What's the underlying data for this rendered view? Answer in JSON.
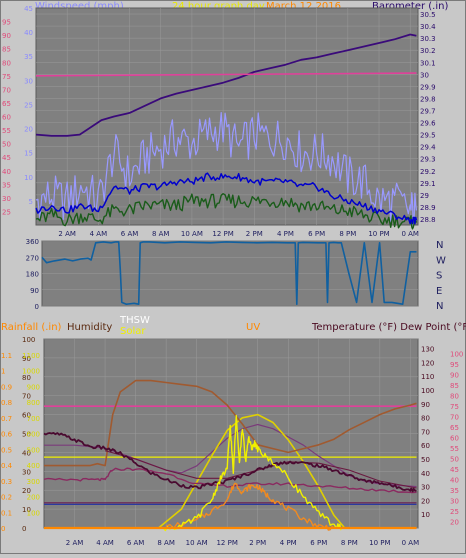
{
  "header": {
    "windspeed_label": "Windspeed (mph)",
    "graph_title": "24 hour graph day",
    "date_text": "March 12 2016",
    "barometer_label": "Barometer (.in)"
  },
  "bottom_labels": {
    "rainfall": "Rainfall (.in)",
    "humidity": "Humidity",
    "thsw": "THSW",
    "solar": "Solar",
    "uv": "UV",
    "temperature": "Temperature (°F) Dew Point (°F)"
  },
  "colors": {
    "plot_bg": "#808080",
    "wind_avg": "#0000cc",
    "wind_gust": "#9999ff",
    "wind_low": "#1a5c1a",
    "barometer": "#3a0a7a",
    "pink_line": "#e0409a",
    "wind_dir": "#1060a0",
    "temperature": "#4a0a30",
    "dew_point": "#8a2a60",
    "humidity": "#a05a30",
    "solar": "#f0f000",
    "uv": "#f08a20",
    "rain": "#ff8800"
  },
  "chart_data": [
    {
      "type": "line",
      "xlabel": "",
      "x_ticks": [
        "2 AM",
        "4 AM",
        "6 AM",
        "8 AM",
        "10 AM",
        "12 PM",
        "2 PM",
        "4 PM",
        "6 PM",
        "8 PM",
        "10 PM",
        "0 AM"
      ],
      "x_range_hours": [
        0,
        24.5
      ],
      "y_left": {
        "label": "Windspeed (mph)",
        "range": [
          0,
          45
        ],
        "ticks": [
          5,
          10,
          15,
          20,
          25,
          30,
          35,
          40,
          45
        ]
      },
      "y_left_outer": {
        "range": [
          20,
          100
        ],
        "ticks": [
          25,
          30,
          35,
          40,
          45,
          50,
          55,
          60,
          65,
          70,
          75,
          80,
          85,
          90,
          95
        ]
      },
      "y_right": {
        "label": "Barometer (.in)",
        "range": [
          28.75,
          30.55
        ],
        "ticks": [
          "28.8",
          "28.9",
          "29",
          "29.1",
          "29.2",
          "29.3",
          "29.4",
          "29.5",
          "29.6",
          "29.7",
          "29.8",
          "29.9",
          "30",
          "30.1",
          "30.2",
          "30.3",
          "30.4",
          "30.5"
        ]
      },
      "series": [
        {
          "name": "Barometer",
          "axis": "right",
          "x": [
            0,
            1,
            2,
            2.8,
            3.5,
            4.2,
            5,
            6,
            7,
            8,
            9,
            10,
            11,
            12,
            13,
            14,
            15,
            16,
            17,
            18,
            19,
            20,
            21,
            22,
            23,
            24,
            24.4
          ],
          "y": [
            29.5,
            29.49,
            29.49,
            29.5,
            29.56,
            29.62,
            29.65,
            29.68,
            29.74,
            29.8,
            29.84,
            29.87,
            29.9,
            29.93,
            29.97,
            30.02,
            30.05,
            30.08,
            30.12,
            30.14,
            30.17,
            30.2,
            30.23,
            30.26,
            30.29,
            30.33,
            30.32
          ]
        },
        {
          "name": "Wind gust",
          "axis": "left",
          "x": [
            0,
            1,
            2,
            3,
            4,
            5,
            6,
            7,
            8,
            9,
            10,
            11,
            12,
            13,
            14,
            15,
            16,
            17,
            18,
            19,
            20,
            21,
            22,
            23,
            24,
            24.4
          ],
          "y": [
            5,
            6,
            5,
            8,
            5,
            15,
            10,
            14,
            16,
            18,
            17,
            19,
            20,
            16,
            19,
            18,
            18,
            15,
            15,
            14,
            10,
            9,
            5,
            5,
            3,
            3
          ]
        },
        {
          "name": "Wind average",
          "axis": "left",
          "x": [
            0,
            1,
            2,
            3,
            4,
            5,
            6,
            7,
            8,
            9,
            10,
            11,
            12,
            13,
            14,
            15,
            16,
            17,
            18,
            19,
            20,
            21,
            22,
            23,
            24,
            24.4
          ],
          "y": [
            3,
            4,
            3,
            4,
            3,
            8,
            7,
            8,
            8,
            9,
            9,
            10,
            10,
            10,
            9,
            9,
            9,
            8,
            8,
            6,
            5,
            4,
            3,
            2,
            1,
            1
          ]
        },
        {
          "name": "Wind low",
          "axis": "left",
          "x": [
            0,
            1,
            2,
            3,
            4,
            5,
            6,
            7,
            8,
            9,
            10,
            11,
            12,
            13,
            14,
            15,
            16,
            17,
            18,
            19,
            20,
            21,
            22,
            23,
            24,
            24.4
          ],
          "y": [
            1,
            2,
            1,
            2,
            1,
            3,
            3,
            4,
            4,
            4,
            5,
            5,
            5,
            5,
            5,
            5,
            5,
            4,
            4,
            3,
            3,
            2,
            1,
            1,
            0.5,
            0.5
          ]
        },
        {
          "name": "Pink reference",
          "axis": "left_outer",
          "x": [
            0,
            24.4
          ],
          "y": [
            75,
            76
          ]
        }
      ]
    },
    {
      "type": "line",
      "x_ticks": [
        "2 AM",
        "4 AM",
        "6 AM",
        "8 AM",
        "10 AM",
        "12 PM",
        "2 PM",
        "4 PM",
        "6 PM",
        "8 PM",
        "10 PM",
        "0 AM"
      ],
      "x_range_hours": [
        0,
        24.5
      ],
      "y_left": {
        "range": [
          0,
          360
        ],
        "ticks": [
          0,
          90,
          180,
          270,
          360
        ]
      },
      "y_right_labels": [
        "N",
        "W",
        "S",
        "E",
        "N"
      ],
      "series": [
        {
          "name": "Wind direction",
          "x": [
            0,
            0.3,
            0.8,
            1.5,
            2,
            2.5,
            3,
            3.2,
            3.5,
            4,
            4.5,
            4.8,
            5,
            5.1,
            5.2,
            5.5,
            6,
            6.3,
            6.4,
            6.6,
            7,
            8,
            9,
            10,
            11,
            12,
            13,
            14,
            15,
            16,
            16.5,
            16.6,
            16.7,
            17,
            18,
            18.5,
            18.6,
            18.7,
            19,
            19.3,
            19.5,
            20,
            20.5,
            21,
            21.5,
            22,
            22.3,
            22.8,
            23.5,
            24,
            24.4
          ],
          "y": [
            270,
            240,
            250,
            260,
            250,
            260,
            265,
            255,
            350,
            355,
            350,
            355,
            355,
            200,
            20,
            10,
            15,
            10,
            350,
            355,
            355,
            350,
            355,
            352,
            350,
            355,
            352,
            350,
            352,
            350,
            350,
            10,
            350,
            352,
            350,
            350,
            20,
            350,
            352,
            350,
            350,
            180,
            20,
            350,
            20,
            350,
            20,
            20,
            10,
            300,
            300
          ]
        }
      ]
    },
    {
      "type": "line",
      "x_ticks": [
        "2 AM",
        "4 AM",
        "6 AM",
        "8 AM",
        "10 AM",
        "12 PM",
        "2 PM",
        "4 PM",
        "6 PM",
        "8 PM",
        "10 PM",
        "0 AM"
      ],
      "x_range_hours": [
        0,
        24.5
      ],
      "y_rain": {
        "label": "Rainfall (.in)",
        "range": [
          0,
          1.2
        ],
        "ticks": [
          "0",
          "0.1",
          "0.2",
          "0.3",
          "0.4",
          "0.5",
          "0.6",
          "0.7",
          "0.8",
          "0.9",
          "1",
          "1.1"
        ]
      },
      "y_humidity": {
        "label": "Humidity",
        "range": [
          0,
          100
        ],
        "ticks": [
          0,
          10,
          20,
          30,
          40,
          50,
          60,
          70,
          80,
          90,
          100
        ]
      },
      "y_solar": {
        "label": "Solar",
        "range": [
          0,
          1200
        ],
        "ticks": [
          100,
          200,
          300,
          400,
          500,
          600,
          700,
          800,
          900,
          1000,
          1100
        ]
      },
      "y_uv": {
        "label": "UV",
        "range": [
          0,
          10
        ],
        "ticks": [
          1,
          2,
          3,
          4,
          5,
          6,
          7,
          8,
          9
        ]
      },
      "y_temp": {
        "label": "Temperature (°F)",
        "range": [
          0,
          137
        ],
        "ticks": [
          10,
          20,
          30,
          40,
          50,
          60,
          70,
          80,
          90,
          100,
          110,
          120,
          130
        ]
      },
      "y_dew": {
        "label": "Dew Point (°F)",
        "range": [
          17,
          107
        ],
        "ticks": [
          20,
          25,
          30,
          35,
          40,
          45,
          50,
          55,
          60,
          65,
          70,
          75,
          80,
          85,
          90,
          95,
          100
        ]
      },
      "series": [
        {
          "name": "Humidity",
          "axis": "humidity",
          "x": [
            0,
            1,
            2,
            3,
            3.5,
            4,
            4.5,
            5,
            6,
            7,
            8,
            9,
            10,
            11,
            12,
            13,
            14,
            15,
            16,
            17,
            18,
            19,
            20,
            21,
            22,
            23,
            24,
            24.4
          ],
          "y": [
            33,
            33,
            33,
            33,
            34,
            33,
            60,
            72,
            78,
            78,
            77,
            76,
            75,
            72,
            65,
            55,
            44,
            42,
            40,
            42,
            44,
            47,
            52,
            56,
            60,
            63,
            65,
            66
          ]
        },
        {
          "name": "Temperature",
          "axis": "temp",
          "x": [
            0,
            1,
            2,
            3,
            4,
            5,
            6,
            7,
            8,
            9,
            10,
            11,
            12,
            13,
            14,
            15,
            16,
            17,
            18,
            19,
            20,
            21,
            22,
            23,
            24,
            24.4
          ],
          "y": [
            68,
            68,
            64,
            59,
            58,
            54,
            47,
            40,
            35,
            31,
            29,
            32,
            34,
            38,
            42,
            46,
            48,
            47,
            45,
            42,
            38,
            34,
            33,
            30,
            28,
            27
          ]
        },
        {
          "name": "Temperature high",
          "axis": "temp",
          "x": [
            4,
            6,
            8,
            10,
            12,
            14,
            16,
            18,
            20,
            22,
            24.4
          ],
          "y": [
            56,
            50,
            42,
            36,
            36,
            42,
            48,
            47,
            42,
            34,
            29
          ]
        },
        {
          "name": "THSW",
          "axis": "temp",
          "x": [
            0,
            2,
            4,
            6,
            8,
            9,
            10,
            11,
            12,
            13,
            14,
            15,
            16,
            17,
            18,
            19,
            20,
            21,
            22,
            24.4
          ],
          "y": [
            60,
            60,
            58,
            50,
            42,
            40,
            45,
            55,
            65,
            72,
            75,
            72,
            66,
            60,
            52,
            45,
            38,
            34,
            32,
            30
          ]
        },
        {
          "name": "Dew Point",
          "axis": "dew",
          "x": [
            0,
            2,
            3.5,
            4,
            4.5,
            6,
            8,
            10,
            12,
            14,
            16,
            18,
            20,
            22,
            24.4
          ],
          "y": [
            40,
            40,
            40,
            40,
            45,
            45,
            43,
            38,
            37,
            38,
            38,
            37,
            36,
            35,
            34
          ]
        },
        {
          "name": "Dew Point low",
          "axis": "dew",
          "x": [
            0,
            2,
            4,
            6,
            8,
            10,
            12,
            14,
            16,
            18,
            20,
            22,
            24.4
          ],
          "y": [
            29,
            29,
            29,
            29,
            29,
            29,
            29,
            29,
            29,
            29,
            29,
            29,
            29
          ]
        },
        {
          "name": "Solar",
          "axis": "solar",
          "x": [
            7.8,
            9,
            10,
            11,
            11.5,
            12,
            12.2,
            12.4,
            12.6,
            12.8,
            13,
            13.2,
            13.4,
            13.6,
            13.8,
            14,
            14.4,
            15,
            16,
            17,
            18,
            19,
            19.5
          ],
          "y": [
            0,
            10,
            60,
            180,
            300,
            380,
            650,
            350,
            720,
            420,
            640,
            420,
            580,
            500,
            540,
            500,
            460,
            420,
            320,
            200,
            90,
            20,
            0
          ]
        },
        {
          "name": "Solar estimate",
          "axis": "solar",
          "x": [
            7.5,
            9,
            10,
            11,
            12,
            13,
            14,
            15,
            16,
            17,
            18,
            19,
            19.7
          ],
          "y": [
            0,
            120,
            290,
            460,
            620,
            700,
            720,
            670,
            560,
            420,
            260,
            80,
            0
          ]
        },
        {
          "name": "UV",
          "axis": "uv",
          "x": [
            8,
            10,
            11,
            12,
            12.5,
            13,
            13.5,
            14,
            14.5,
            15,
            16,
            17,
            18,
            19
          ],
          "y": [
            0,
            0.4,
            0.9,
            1.5,
            2.4,
            1.9,
            2.2,
            2.2,
            1.8,
            1.5,
            1.0,
            0.5,
            0.1,
            0
          ]
        },
        {
          "name": "Rain",
          "axis": "rain",
          "x": [
            0,
            24.4
          ],
          "y": [
            0,
            0
          ]
        },
        {
          "name": "Pink reference",
          "axis": "dew",
          "x": [
            0,
            24.4
          ],
          "y": [
            75,
            75
          ]
        },
        {
          "name": "Yellow reference",
          "axis": "rain",
          "x": [
            0,
            24.4
          ],
          "y": [
            0.45,
            0.45
          ]
        },
        {
          "name": "Blue reference",
          "axis": "rain",
          "x": [
            0,
            24.4
          ],
          "y": [
            0.15,
            0.15
          ]
        }
      ]
    }
  ]
}
